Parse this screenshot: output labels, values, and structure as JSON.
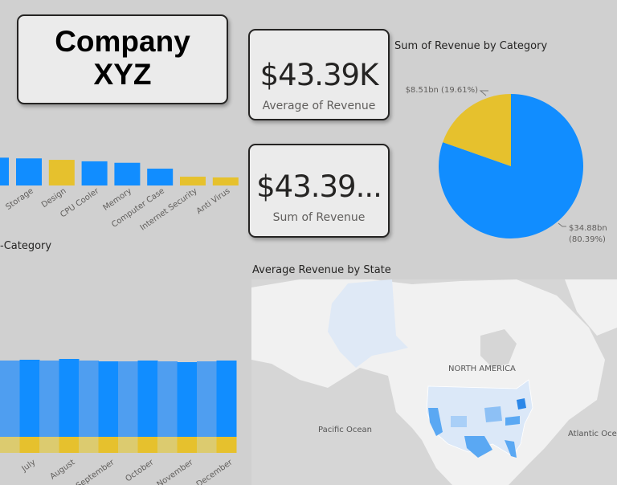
{
  "title": {
    "line1": "Company",
    "line2": "XYZ"
  },
  "kpis": {
    "average": {
      "value": "$43.39K",
      "label": "Average of Revenue"
    },
    "sum": {
      "value": "$43.39...",
      "label": "Sum of Revenue"
    }
  },
  "colors": {
    "blue": "#118dff",
    "yellow": "#e6c12d",
    "bg": "#d0d0d0"
  },
  "chart_data": [
    {
      "type": "bar",
      "title": "",
      "categories": [
        "Storage",
        "Design",
        "CPU Cooler",
        "Memory",
        "Computer Case",
        "Internet Security",
        "Anti Virus"
      ],
      "values": [
        1.85,
        1.75,
        1.65,
        1.55,
        1.15,
        0.6,
        0.55
      ],
      "partial_left_bar": 1.9,
      "bar_colors": [
        "#118dff",
        "#e6c12d",
        "#118dff",
        "#118dff",
        "#118dff",
        "#e6c12d",
        "#e6c12d"
      ],
      "ylim": [
        0,
        2.2
      ]
    },
    {
      "type": "pie",
      "title": "Sum of Revenue by Category",
      "slices": [
        {
          "value": 34.88,
          "label": "$34.88bn",
          "pct_label": "(80.39%)",
          "color": "#118dff"
        },
        {
          "value": 8.51,
          "label": "$8.51bn (19.61%)",
          "color": "#e6c12d"
        }
      ]
    },
    {
      "type": "bar",
      "stacked": true,
      "title": "-Category",
      "categories": [
        "",
        "July",
        "",
        "August",
        "",
        "September",
        "",
        "October",
        "",
        "November",
        "",
        "December"
      ],
      "series": [
        {
          "values": [
            95,
            96,
            95,
            97,
            95,
            94,
            94,
            95,
            94,
            93,
            94,
            95
          ],
          "color": "#118dff"
        },
        {
          "values": [
            20,
            20,
            20,
            20,
            20,
            20,
            20,
            20,
            20,
            20,
            20,
            20
          ],
          "color": "#e6c12d"
        }
      ],
      "ylim": [
        0,
        120
      ]
    }
  ],
  "map": {
    "title": "Average Revenue by State",
    "labels": {
      "continent": "NORTH AMERICA",
      "pacific": "Pacific Ocean",
      "atlantic": "Atlantic Ocean"
    }
  }
}
